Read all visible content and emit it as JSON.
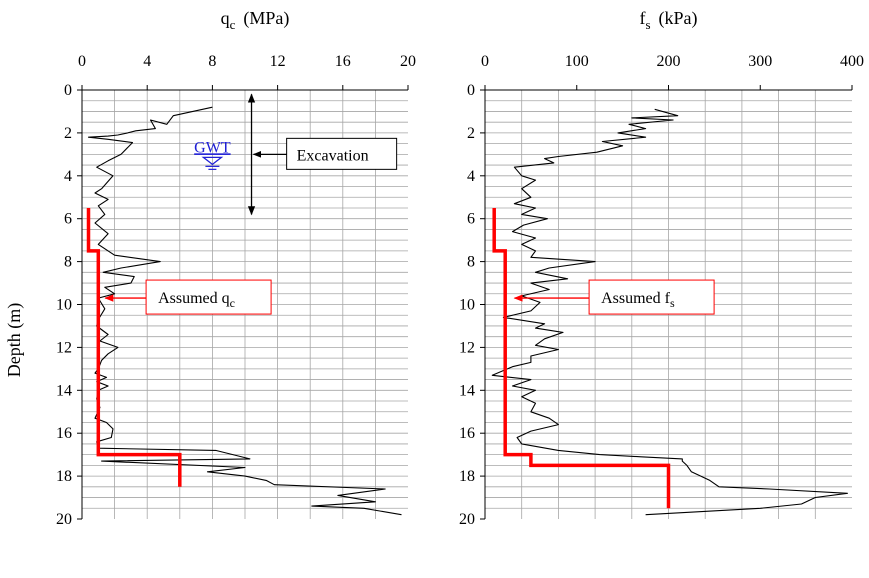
{
  "chart_data": [
    {
      "type": "line",
      "x_title": {
        "main": "q",
        "sub": "c",
        "unit": "(MPa)"
      },
      "ylabel": "Depth (m)",
      "xlim": [
        0,
        20
      ],
      "ylim": [
        0,
        20
      ],
      "x_ticks": [
        0,
        4,
        8,
        12,
        16,
        20
      ],
      "y_ticks": [
        0,
        2,
        4,
        6,
        8,
        10,
        12,
        14,
        16,
        18,
        20
      ],
      "grid": true,
      "y_inverted": true,
      "x_axis_position": "top",
      "series": [
        {
          "name": "",
          "color": "#000000",
          "points": [
            [
              8,
              0.8
            ],
            [
              5.6,
              1.2
            ],
            [
              5.2,
              1.6
            ],
            [
              4.2,
              1.4
            ],
            [
              4.5,
              1.8
            ],
            [
              3.3,
              1.9
            ],
            [
              2.8,
              2.0
            ],
            [
              2.2,
              2.1
            ],
            [
              1.6,
              2.15
            ],
            [
              0.4,
              2.2
            ],
            [
              1.6,
              2.3
            ],
            [
              3.1,
              2.45
            ],
            [
              2.4,
              3.0
            ],
            [
              1.6,
              3.3
            ],
            [
              0.9,
              3.6
            ],
            [
              1.9,
              4.0
            ],
            [
              1.2,
              4.6
            ],
            [
              0.8,
              4.8
            ],
            [
              1.6,
              5.1
            ],
            [
              1.0,
              5.4
            ],
            [
              1.4,
              5.8
            ],
            [
              0.8,
              6.2
            ],
            [
              1.6,
              6.7
            ],
            [
              1.0,
              7.2
            ],
            [
              2.0,
              7.7
            ],
            [
              4.8,
              8.0
            ],
            [
              2.4,
              8.3
            ],
            [
              1.3,
              8.5
            ],
            [
              3.2,
              8.7
            ],
            [
              3.0,
              9.0
            ],
            [
              1.4,
              9.2
            ],
            [
              2.0,
              9.5
            ],
            [
              1.0,
              9.7
            ],
            [
              1.4,
              10.2
            ],
            [
              1.0,
              10.7
            ],
            [
              0.9,
              11.0
            ],
            [
              1.6,
              11.4
            ],
            [
              1.1,
              11.7
            ],
            [
              2.2,
              12.0
            ],
            [
              1.6,
              12.3
            ],
            [
              1.2,
              12.6
            ],
            [
              1.0,
              13.0
            ],
            [
              0.8,
              13.2
            ],
            [
              1.5,
              13.4
            ],
            [
              0.9,
              13.6
            ],
            [
              1.6,
              13.8
            ],
            [
              1.0,
              14.0
            ],
            [
              0.9,
              14.4
            ],
            [
              1.1,
              14.8
            ],
            [
              0.8,
              15.3
            ],
            [
              1.5,
              15.5
            ],
            [
              1.9,
              15.8
            ],
            [
              1.8,
              16.2
            ],
            [
              0.9,
              16.4
            ],
            [
              1.0,
              16.7
            ],
            [
              8.2,
              16.8
            ],
            [
              10.3,
              17.2
            ],
            [
              1.2,
              17.3
            ],
            [
              10.0,
              17.6
            ],
            [
              7.7,
              17.8
            ],
            [
              10.0,
              18.0
            ],
            [
              11.3,
              18.2
            ],
            [
              11.8,
              18.4
            ],
            [
              18.6,
              18.6
            ],
            [
              15.7,
              18.9
            ],
            [
              18.0,
              19.2
            ],
            [
              14.1,
              19.4
            ],
            [
              17.3,
              19.5
            ],
            [
              19.6,
              19.8
            ]
          ]
        },
        {
          "name": "Assumed q_c",
          "color": "#ff0000",
          "points": [
            [
              0.4,
              5.5
            ],
            [
              0.4,
              7.5
            ],
            [
              1.0,
              7.5
            ],
            [
              1.0,
              17.0
            ],
            [
              6.0,
              17.0
            ],
            [
              6.0,
              18.5
            ]
          ]
        }
      ],
      "annotations": [
        {
          "kind": "gwt",
          "text": "GWT",
          "x": 8.0,
          "y": 3.0
        },
        {
          "kind": "span-arrow",
          "text": "Excavation",
          "x": 10.4,
          "y_from": 0.2,
          "y_to": 5.8,
          "label_x": 12.8,
          "label_y": 3.0
        },
        {
          "kind": "callout",
          "text_main": "Assumed q",
          "text_sub": "c",
          "x": 1.3,
          "y": 9.7,
          "label_x": 4.3,
          "label_y": 9.7
        }
      ]
    },
    {
      "type": "line",
      "x_title": {
        "main": "f",
        "sub": "s",
        "unit": "(kPa)"
      },
      "ylabel": "",
      "xlim": [
        0,
        400
      ],
      "ylim": [
        0,
        20
      ],
      "x_ticks": [
        0,
        100,
        200,
        300,
        400
      ],
      "y_ticks": [
        0,
        2,
        4,
        6,
        8,
        10,
        12,
        14,
        16,
        18,
        20
      ],
      "grid": true,
      "y_inverted": true,
      "x_axis_position": "top",
      "series": [
        {
          "name": "",
          "color": "#000000",
          "points": [
            [
              185,
              0.9
            ],
            [
              210,
              1.2
            ],
            [
              160,
              1.3
            ],
            [
              205,
              1.4
            ],
            [
              157,
              1.6
            ],
            [
              175,
              1.8
            ],
            [
              145,
              2.0
            ],
            [
              175,
              2.2
            ],
            [
              128,
              2.4
            ],
            [
              150,
              2.6
            ],
            [
              122,
              2.9
            ],
            [
              80,
              3.1
            ],
            [
              65,
              3.2
            ],
            [
              75,
              3.4
            ],
            [
              32,
              3.6
            ],
            [
              40,
              4.0
            ],
            [
              55,
              4.2
            ],
            [
              40,
              4.6
            ],
            [
              50,
              5.0
            ],
            [
              32,
              5.3
            ],
            [
              55,
              5.5
            ],
            [
              40,
              5.8
            ],
            [
              68,
              6.0
            ],
            [
              42,
              6.3
            ],
            [
              30,
              6.6
            ],
            [
              55,
              6.9
            ],
            [
              40,
              7.2
            ],
            [
              55,
              7.5
            ],
            [
              50,
              7.8
            ],
            [
              120,
              8.0
            ],
            [
              70,
              8.3
            ],
            [
              55,
              8.5
            ],
            [
              90,
              8.8
            ],
            [
              50,
              9.0
            ],
            [
              70,
              9.3
            ],
            [
              40,
              9.6
            ],
            [
              60,
              9.9
            ],
            [
              50,
              10.3
            ],
            [
              20,
              10.6
            ],
            [
              65,
              10.9
            ],
            [
              55,
              11.1
            ],
            [
              85,
              11.3
            ],
            [
              65,
              11.6
            ],
            [
              55,
              11.9
            ],
            [
              80,
              12.1
            ],
            [
              50,
              12.4
            ],
            [
              50,
              12.7
            ],
            [
              30,
              12.9
            ],
            [
              8,
              13.3
            ],
            [
              50,
              13.5
            ],
            [
              30,
              13.8
            ],
            [
              55,
              14.0
            ],
            [
              40,
              14.3
            ],
            [
              55,
              14.6
            ],
            [
              50,
              15.0
            ],
            [
              70,
              15.3
            ],
            [
              80,
              15.6
            ],
            [
              50,
              15.9
            ],
            [
              35,
              16.2
            ],
            [
              40,
              16.5
            ],
            [
              80,
              16.8
            ],
            [
              125,
              17.0
            ],
            [
              170,
              17.1
            ],
            [
              215,
              17.2
            ],
            [
              215,
              17.3
            ],
            [
              220,
              17.5
            ],
            [
              225,
              17.8
            ],
            [
              245,
              18.2
            ],
            [
              255,
              18.5
            ],
            [
              310,
              18.6
            ],
            [
              395,
              18.8
            ],
            [
              360,
              19.0
            ],
            [
              345,
              19.3
            ],
            [
              300,
              19.5
            ],
            [
              175,
              19.8
            ]
          ]
        },
        {
          "name": "Assumed f_s",
          "color": "#ff0000",
          "points": [
            [
              10,
              5.5
            ],
            [
              10,
              7.5
            ],
            [
              22,
              7.5
            ],
            [
              22,
              17.0
            ],
            [
              50,
              17.0
            ],
            [
              50,
              17.5
            ],
            [
              200,
              17.5
            ],
            [
              200,
              19.5
            ]
          ]
        }
      ],
      "annotations": [
        {
          "kind": "callout",
          "text_main": "Assumed f",
          "text_sub": "s",
          "x": 30,
          "y": 9.7,
          "label_x": 120,
          "label_y": 9.7
        }
      ]
    }
  ]
}
